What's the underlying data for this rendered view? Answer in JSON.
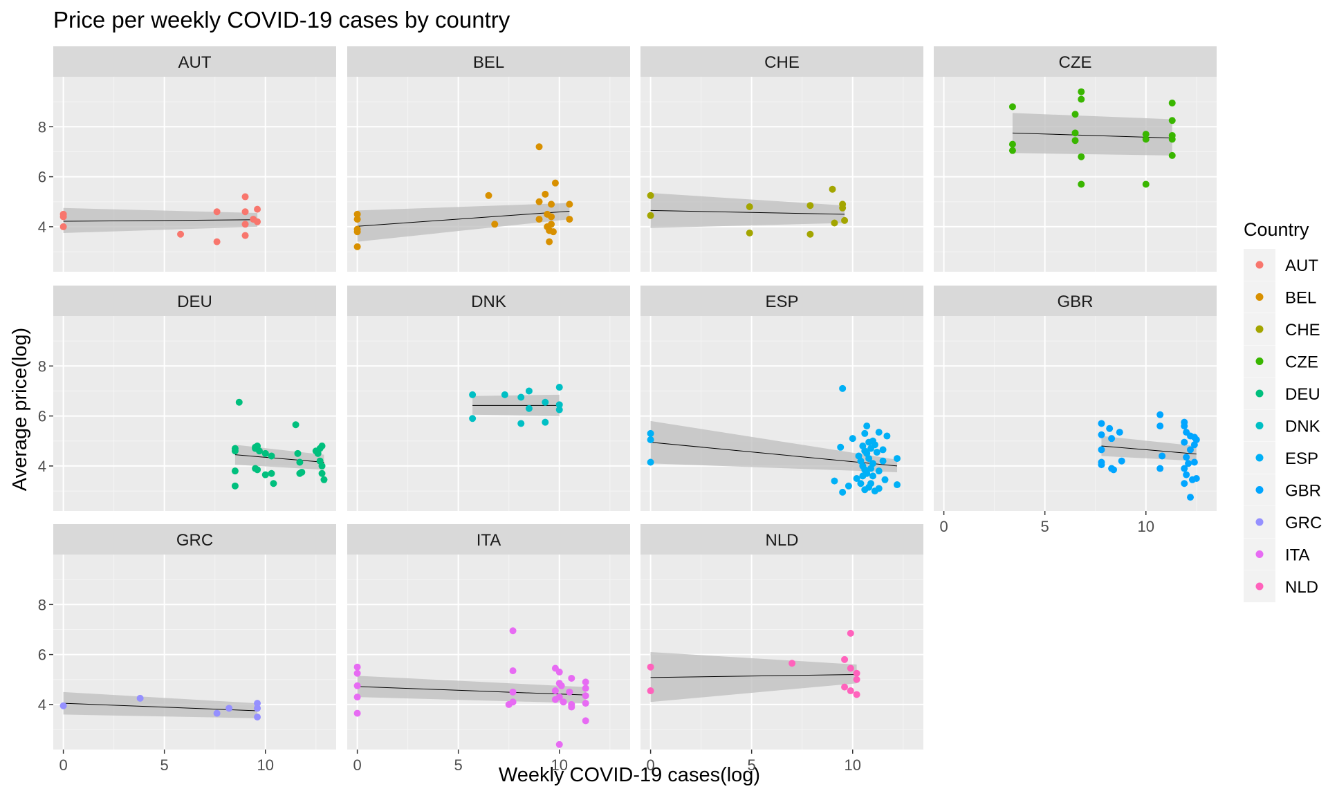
{
  "chart_data": {
    "type": "scatter",
    "title": "Price per weekly COVID-19 cases by country",
    "xlabel": "Weekly COVID-19 cases(log)",
    "ylabel": "Average price(log)",
    "xlim": [
      -0.5,
      13.5
    ],
    "ylim": [
      2.2,
      10
    ],
    "x_ticks": [
      0,
      5,
      10
    ],
    "y_ticks": [
      4,
      6,
      8
    ],
    "grid": true,
    "legend": {
      "title": "Country",
      "position": "right"
    },
    "colors": {
      "AUT": "#F8766D",
      "BEL": "#D89000",
      "CHE": "#A3A500",
      "CZE": "#39B600",
      "DEU": "#00BF7D",
      "DNK": "#00BFC4",
      "ESP": "#00B0F6",
      "GBR": "#00A5FF",
      "GRC": "#9590FF",
      "ITA": "#E76BF3",
      "NLD": "#FF62BC"
    },
    "panel_bg": "#EBEBEB",
    "strip_bg": "#D9D9D9",
    "ribbon_color": "#BEBEBE",
    "panels": [
      {
        "name": "AUT",
        "points": [
          [
            0,
            4.5
          ],
          [
            0,
            4.4
          ],
          [
            0,
            4.0
          ],
          [
            5.8,
            3.7
          ],
          [
            7.6,
            4.6
          ],
          [
            7.6,
            3.4
          ],
          [
            9.0,
            5.2
          ],
          [
            9.0,
            4.6
          ],
          [
            9.0,
            4.1
          ],
          [
            9.0,
            3.65
          ],
          [
            9.4,
            4.3
          ],
          [
            9.6,
            4.7
          ],
          [
            9.6,
            4.2
          ]
        ],
        "fit": {
          "x": [
            0,
            9.6
          ],
          "y": [
            4.22,
            4.28
          ]
        },
        "band": {
          "upper": [
            4.75,
            4.55
          ],
          "lower": [
            3.75,
            4.0
          ]
        }
      },
      {
        "name": "BEL",
        "points": [
          [
            0,
            4.5
          ],
          [
            0,
            4.3
          ],
          [
            0,
            3.9
          ],
          [
            0,
            3.8
          ],
          [
            0,
            3.2
          ],
          [
            6.5,
            5.25
          ],
          [
            6.8,
            4.1
          ],
          [
            9.0,
            7.2
          ],
          [
            9.0,
            5.0
          ],
          [
            9.0,
            4.3
          ],
          [
            9.3,
            5.3
          ],
          [
            9.4,
            4.5
          ],
          [
            9.4,
            4.0
          ],
          [
            9.5,
            3.4
          ],
          [
            9.5,
            3.85
          ],
          [
            9.6,
            4.9
          ],
          [
            9.6,
            4.4
          ],
          [
            9.6,
            4.1
          ],
          [
            9.7,
            3.8
          ],
          [
            9.8,
            5.75
          ],
          [
            10.5,
            4.9
          ],
          [
            10.5,
            4.3
          ]
        ],
        "fit": {
          "x": [
            0,
            10.5
          ],
          "y": [
            4.02,
            4.62
          ]
        },
        "band": {
          "upper": [
            4.65,
            4.95
          ],
          "lower": [
            3.4,
            4.3
          ]
        }
      },
      {
        "name": "CHE",
        "points": [
          [
            0,
            5.25
          ],
          [
            0,
            4.45
          ],
          [
            4.9,
            4.8
          ],
          [
            4.9,
            3.75
          ],
          [
            7.9,
            4.85
          ],
          [
            7.9,
            3.7
          ],
          [
            9.0,
            5.5
          ],
          [
            9.1,
            4.15
          ],
          [
            9.5,
            4.9
          ],
          [
            9.5,
            4.75
          ],
          [
            9.6,
            4.25
          ]
        ],
        "fit": {
          "x": [
            0,
            9.6
          ],
          "y": [
            4.65,
            4.5
          ]
        },
        "band": {
          "upper": [
            5.35,
            4.85
          ],
          "lower": [
            3.95,
            4.15
          ]
        }
      },
      {
        "name": "CZE",
        "points": [
          [
            3.4,
            8.8
          ],
          [
            3.4,
            7.3
          ],
          [
            3.4,
            7.05
          ],
          [
            6.5,
            8.5
          ],
          [
            6.5,
            7.75
          ],
          [
            6.5,
            7.45
          ],
          [
            6.8,
            9.4
          ],
          [
            6.8,
            9.1
          ],
          [
            6.8,
            6.8
          ],
          [
            6.8,
            5.7
          ],
          [
            10.0,
            7.7
          ],
          [
            10.0,
            7.5
          ],
          [
            10.0,
            5.7
          ],
          [
            11.3,
            8.95
          ],
          [
            11.3,
            8.25
          ],
          [
            11.3,
            7.65
          ],
          [
            11.3,
            7.5
          ],
          [
            11.3,
            6.85
          ]
        ],
        "fit": {
          "x": [
            3.4,
            11.3
          ],
          "y": [
            7.75,
            7.55
          ]
        },
        "band": {
          "upper": [
            8.55,
            8.3
          ],
          "lower": [
            6.95,
            6.85
          ]
        }
      },
      {
        "name": "DEU",
        "points": [
          [
            8.5,
            4.7
          ],
          [
            8.5,
            4.6
          ],
          [
            8.5,
            3.8
          ],
          [
            8.5,
            3.2
          ],
          [
            8.7,
            6.55
          ],
          [
            9.5,
            4.75
          ],
          [
            9.5,
            4.7
          ],
          [
            9.5,
            3.9
          ],
          [
            9.6,
            4.8
          ],
          [
            9.6,
            3.85
          ],
          [
            9.7,
            4.6
          ],
          [
            10.0,
            4.5
          ],
          [
            10.0,
            3.65
          ],
          [
            10.3,
            4.4
          ],
          [
            10.3,
            3.7
          ],
          [
            10.4,
            3.3
          ],
          [
            11.5,
            5.65
          ],
          [
            11.6,
            4.5
          ],
          [
            11.7,
            4.15
          ],
          [
            11.7,
            3.7
          ],
          [
            11.8,
            3.75
          ],
          [
            12.5,
            4.6
          ],
          [
            12.6,
            4.5
          ],
          [
            12.7,
            4.7
          ],
          [
            12.7,
            4.2
          ],
          [
            12.8,
            4.8
          ],
          [
            12.8,
            4.0
          ],
          [
            12.8,
            3.7
          ],
          [
            12.9,
            3.45
          ]
        ],
        "fit": {
          "x": [
            8.5,
            12.9
          ],
          "y": [
            4.45,
            4.15
          ]
        },
        "band": {
          "upper": [
            4.85,
            4.45
          ],
          "lower": [
            4.05,
            3.85
          ]
        }
      },
      {
        "name": "DNK",
        "points": [
          [
            5.7,
            6.85
          ],
          [
            5.7,
            5.9
          ],
          [
            7.3,
            6.85
          ],
          [
            8.1,
            6.75
          ],
          [
            8.1,
            5.7
          ],
          [
            8.5,
            7.0
          ],
          [
            8.5,
            6.3
          ],
          [
            9.3,
            6.55
          ],
          [
            9.3,
            5.75
          ],
          [
            10.0,
            7.15
          ],
          [
            10.0,
            6.45
          ],
          [
            10.0,
            6.25
          ]
        ],
        "fit": {
          "x": [
            5.7,
            10.0
          ],
          "y": [
            6.42,
            6.42
          ]
        },
        "band": {
          "upper": [
            6.8,
            6.85
          ],
          "lower": [
            6.05,
            6.0
          ]
        }
      },
      {
        "name": "ESP",
        "points": [
          [
            0,
            5.3
          ],
          [
            0,
            5.05
          ],
          [
            0,
            4.15
          ],
          [
            9.5,
            7.1
          ],
          [
            9.1,
            3.4
          ],
          [
            9.4,
            4.75
          ],
          [
            9.5,
            2.95
          ],
          [
            9.8,
            3.2
          ],
          [
            10.0,
            5.1
          ],
          [
            10.2,
            3.5
          ],
          [
            10.3,
            4.4
          ],
          [
            10.4,
            4.2
          ],
          [
            10.4,
            3.3
          ],
          [
            10.5,
            4.8
          ],
          [
            10.5,
            4.0
          ],
          [
            10.5,
            3.6
          ],
          [
            10.6,
            5.3
          ],
          [
            10.6,
            4.6
          ],
          [
            10.6,
            3.85
          ],
          [
            10.6,
            3.05
          ],
          [
            10.7,
            5.6
          ],
          [
            10.7,
            4.5
          ],
          [
            10.7,
            3.7
          ],
          [
            10.8,
            4.95
          ],
          [
            10.8,
            4.3
          ],
          [
            10.8,
            3.15
          ],
          [
            10.9,
            4.7
          ],
          [
            10.9,
            3.9
          ],
          [
            10.9,
            3.3
          ],
          [
            11.0,
            5.0
          ],
          [
            11.0,
            4.1
          ],
          [
            11.0,
            3.6
          ],
          [
            11.1,
            4.85
          ],
          [
            11.1,
            3.0
          ],
          [
            11.2,
            4.55
          ],
          [
            11.3,
            5.35
          ],
          [
            11.3,
            3.8
          ],
          [
            11.3,
            3.1
          ],
          [
            11.5,
            4.65
          ],
          [
            11.5,
            4.2
          ],
          [
            11.6,
            3.45
          ],
          [
            11.7,
            5.2
          ],
          [
            12.2,
            4.3
          ],
          [
            12.2,
            3.25
          ]
        ],
        "fit": {
          "x": [
            0,
            12.2
          ],
          "y": [
            4.95,
            4.0
          ]
        },
        "band": {
          "upper": [
            5.8,
            4.25
          ],
          "lower": [
            4.1,
            3.75
          ]
        }
      },
      {
        "name": "GBR",
        "points": [
          [
            7.8,
            5.7
          ],
          [
            7.8,
            5.25
          ],
          [
            7.8,
            4.65
          ],
          [
            7.8,
            4.15
          ],
          [
            7.8,
            4.05
          ],
          [
            8.2,
            5.5
          ],
          [
            8.3,
            5.1
          ],
          [
            8.3,
            3.9
          ],
          [
            8.4,
            3.85
          ],
          [
            8.7,
            5.35
          ],
          [
            8.8,
            4.2
          ],
          [
            10.7,
            6.05
          ],
          [
            10.7,
            5.6
          ],
          [
            10.7,
            3.9
          ],
          [
            10.8,
            4.4
          ],
          [
            11.9,
            5.75
          ],
          [
            11.9,
            5.6
          ],
          [
            11.9,
            4.95
          ],
          [
            11.9,
            3.9
          ],
          [
            11.9,
            3.3
          ],
          [
            12.0,
            5.35
          ],
          [
            12.0,
            4.35
          ],
          [
            12.0,
            3.65
          ],
          [
            12.1,
            4.1
          ],
          [
            12.2,
            5.2
          ],
          [
            12.2,
            4.65
          ],
          [
            12.2,
            2.75
          ],
          [
            12.3,
            3.45
          ],
          [
            12.4,
            5.15
          ],
          [
            12.4,
            4.85
          ],
          [
            12.4,
            4.15
          ],
          [
            12.5,
            5.05
          ],
          [
            12.5,
            3.5
          ]
        ],
        "fit": {
          "x": [
            7.8,
            12.5
          ],
          "y": [
            4.8,
            4.48
          ]
        },
        "band": {
          "upper": [
            5.2,
            4.8
          ],
          "lower": [
            4.4,
            4.2
          ]
        }
      },
      {
        "name": "GRC",
        "points": [
          [
            0,
            3.95
          ],
          [
            3.8,
            4.25
          ],
          [
            7.6,
            3.65
          ],
          [
            8.2,
            3.85
          ],
          [
            9.6,
            4.05
          ],
          [
            9.6,
            3.85
          ],
          [
            9.6,
            3.5
          ]
        ],
        "fit": {
          "x": [
            0,
            9.6
          ],
          "y": [
            4.05,
            3.75
          ]
        },
        "band": {
          "upper": [
            4.5,
            4.05
          ],
          "lower": [
            3.6,
            3.45
          ]
        }
      },
      {
        "name": "ITA",
        "points": [
          [
            0,
            5.5
          ],
          [
            0,
            5.25
          ],
          [
            0,
            4.75
          ],
          [
            0,
            4.3
          ],
          [
            0,
            3.65
          ],
          [
            7.5,
            4.0
          ],
          [
            7.7,
            6.95
          ],
          [
            7.7,
            5.35
          ],
          [
            7.7,
            4.5
          ],
          [
            7.7,
            4.1
          ],
          [
            9.8,
            5.45
          ],
          [
            9.8,
            4.55
          ],
          [
            9.8,
            4.2
          ],
          [
            10.0,
            5.3
          ],
          [
            10.0,
            4.85
          ],
          [
            10.0,
            4.3
          ],
          [
            10.0,
            2.4
          ],
          [
            10.1,
            4.75
          ],
          [
            10.2,
            4.1
          ],
          [
            10.5,
            4.5
          ],
          [
            10.6,
            5.05
          ],
          [
            10.6,
            4.0
          ],
          [
            10.6,
            3.9
          ],
          [
            11.3,
            4.9
          ],
          [
            11.3,
            4.65
          ],
          [
            11.3,
            4.35
          ],
          [
            11.3,
            4.05
          ],
          [
            11.3,
            3.35
          ]
        ],
        "fit": {
          "x": [
            0,
            11.3
          ],
          "y": [
            4.72,
            4.38
          ]
        },
        "band": {
          "upper": [
            5.15,
            4.7
          ],
          "lower": [
            4.3,
            4.05
          ]
        }
      },
      {
        "name": "NLD",
        "points": [
          [
            0,
            5.5
          ],
          [
            0,
            4.55
          ],
          [
            7.0,
            5.65
          ],
          [
            9.9,
            6.85
          ],
          [
            9.9,
            5.45
          ],
          [
            9.9,
            4.55
          ],
          [
            10.2,
            5.25
          ],
          [
            10.2,
            5.0
          ],
          [
            10.2,
            4.4
          ],
          [
            9.6,
            5.8
          ],
          [
            9.6,
            4.7
          ]
        ],
        "fit": {
          "x": [
            0,
            10.2
          ],
          "y": [
            5.08,
            5.2
          ]
        },
        "band": {
          "upper": [
            6.1,
            5.6
          ],
          "lower": [
            4.1,
            4.85
          ]
        }
      }
    ],
    "x_axis_panels": [
      "GRC",
      "ITA",
      "NLD",
      "GBR"
    ],
    "y_axis_panels": [
      "AUT",
      "DEU",
      "GRC"
    ]
  }
}
